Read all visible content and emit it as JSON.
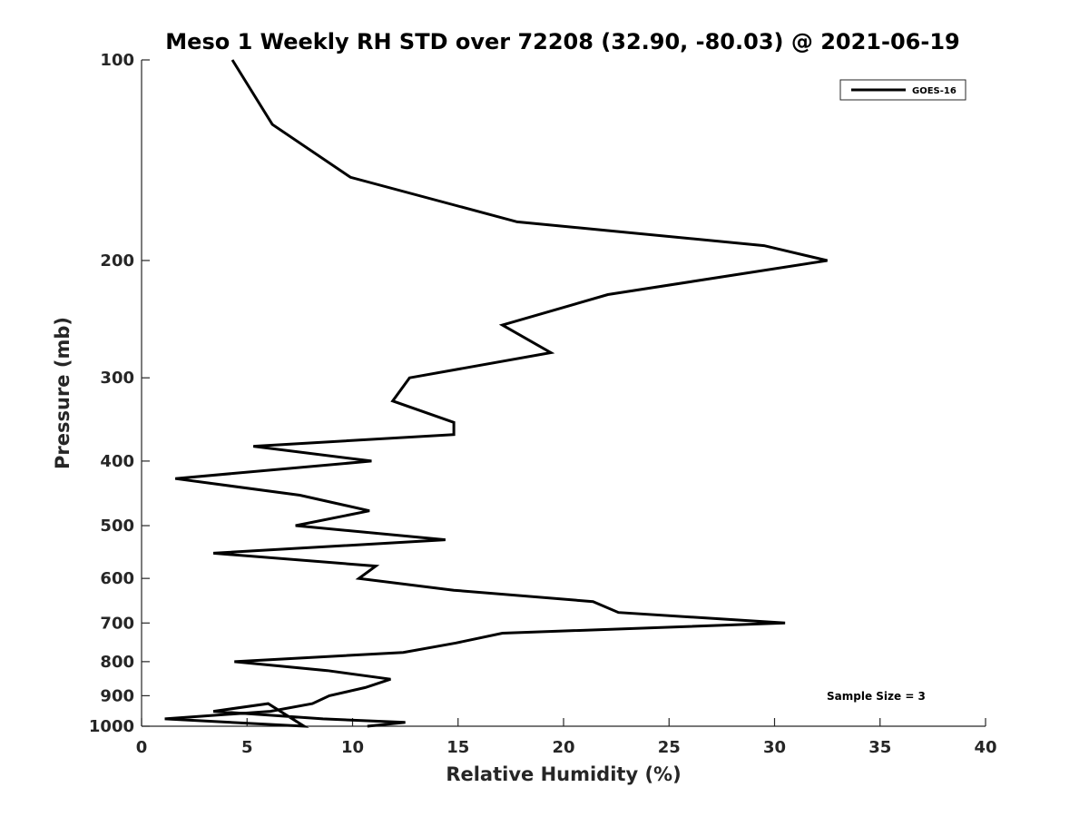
{
  "chart_data": {
    "type": "line",
    "title": "Meso 1 Weekly RH STD over 72208 (32.90, -80.03) @ 2021-06-19",
    "xlabel": "Relative Humidity (%)",
    "ylabel": "Pressure (mb)",
    "xlim": [
      0,
      40
    ],
    "ylim": [
      100,
      1000
    ],
    "yscale": "log",
    "yreversed": true,
    "grid": false,
    "legend_position": "top-right",
    "x_ticks": [
      0,
      5,
      10,
      15,
      20,
      25,
      30,
      35,
      40
    ],
    "y_ticks": [
      100,
      200,
      300,
      400,
      500,
      600,
      700,
      800,
      900,
      1000
    ],
    "series": [
      {
        "name": "GOES-16",
        "color": "#000000",
        "points": [
          {
            "p": 100,
            "rh": 4.3
          },
          {
            "p": 125,
            "rh": 6.2
          },
          {
            "p": 150,
            "rh": 9.9
          },
          {
            "p": 175,
            "rh": 17.8
          },
          {
            "p": 190,
            "rh": 29.5
          },
          {
            "p": 200,
            "rh": 32.5
          },
          {
            "p": 225,
            "rh": 22.1
          },
          {
            "p": 250,
            "rh": 17.1
          },
          {
            "p": 275,
            "rh": 19.4
          },
          {
            "p": 300,
            "rh": 12.7
          },
          {
            "p": 325,
            "rh": 11.9
          },
          {
            "p": 350,
            "rh": 14.8
          },
          {
            "p": 365,
            "rh": 14.8
          },
          {
            "p": 380,
            "rh": 5.3
          },
          {
            "p": 400,
            "rh": 10.9
          },
          {
            "p": 425,
            "rh": 1.6
          },
          {
            "p": 450,
            "rh": 7.5
          },
          {
            "p": 475,
            "rh": 10.8
          },
          {
            "p": 500,
            "rh": 7.3
          },
          {
            "p": 525,
            "rh": 14.4
          },
          {
            "p": 550,
            "rh": 3.4
          },
          {
            "p": 575,
            "rh": 11.1
          },
          {
            "p": 600,
            "rh": 10.3
          },
          {
            "p": 625,
            "rh": 14.8
          },
          {
            "p": 650,
            "rh": 21.4
          },
          {
            "p": 675,
            "rh": 22.6
          },
          {
            "p": 700,
            "rh": 30.5
          },
          {
            "p": 725,
            "rh": 17.1
          },
          {
            "p": 750,
            "rh": 14.9
          },
          {
            "p": 775,
            "rh": 12.4
          },
          {
            "p": 800,
            "rh": 4.4
          },
          {
            "p": 825,
            "rh": 8.8
          },
          {
            "p": 850,
            "rh": 11.8
          },
          {
            "p": 875,
            "rh": 10.6
          },
          {
            "p": 900,
            "rh": 8.9
          },
          {
            "p": 925,
            "rh": 8.1
          },
          {
            "p": 950,
            "rh": 6.1
          },
          {
            "p": 975,
            "rh": 1.1
          },
          {
            "p": 1000,
            "rh": 7.7
          }
        ],
        "extra_points": [
          {
            "p": 925,
            "rh": 6.0
          },
          {
            "p": 950,
            "rh": 3.4
          },
          {
            "p": 975,
            "rh": 8.6
          },
          {
            "p": 987,
            "rh": 12.5
          },
          {
            "p": 1000,
            "rh": 10.7
          }
        ]
      }
    ],
    "annotations": [
      "Sample Size = 3"
    ]
  }
}
